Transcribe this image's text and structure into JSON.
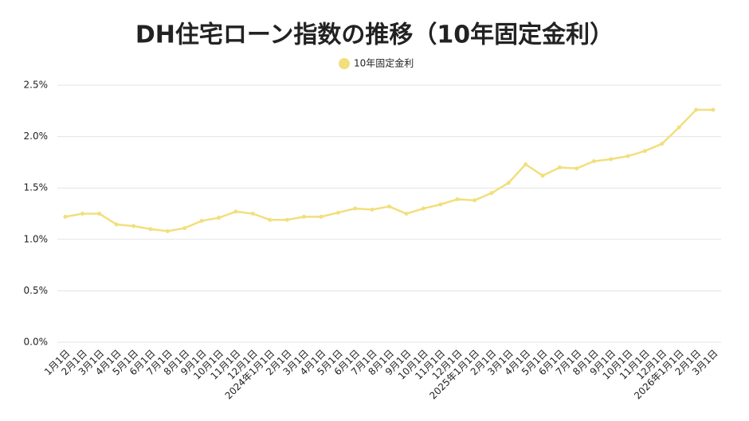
{
  "chart_data": {
    "type": "line",
    "title": "DH住宅ローン指数の推移（10年固定金利）",
    "categories": [
      "1月1日",
      "2月1日",
      "3月1日",
      "4月1日",
      "5月1日",
      "6月1日",
      "7月1日",
      "8月1日",
      "9月1日",
      "10月1日",
      "11月1日",
      "12月1日",
      "2024年1月1日",
      "2月1日",
      "3月1日",
      "4月1日",
      "5月1日",
      "6月1日",
      "7月1日",
      "8月1日",
      "9月1日",
      "10月1日",
      "11月1日",
      "12月1日",
      "2025年1月1日",
      "2月1日",
      "3月1日",
      "4月1日",
      "5月1日",
      "6月1日",
      "7月1日",
      "8月1日",
      "9月1日",
      "10月1日",
      "11月1日",
      "12月1日",
      "2026年1月1日",
      "2月1日",
      "3月1日"
    ],
    "series": [
      {
        "name": "10年固定金利",
        "color": "#f2df7c",
        "values": [
          1.22,
          1.25,
          1.25,
          1.145,
          1.13,
          1.1,
          1.08,
          1.11,
          1.18,
          1.21,
          1.27,
          1.25,
          1.19,
          1.19,
          1.22,
          1.22,
          1.26,
          1.3,
          1.29,
          1.32,
          1.25,
          1.3,
          1.34,
          1.39,
          1.38,
          1.45,
          1.55,
          1.73,
          1.62,
          1.7,
          1.69,
          1.76,
          1.78,
          1.81,
          1.86,
          1.93,
          2.09,
          2.26,
          2.26
        ]
      }
    ],
    "ylim": [
      0,
      2.5
    ],
    "yticks": [
      {
        "value": 0,
        "label": "0.0%"
      },
      {
        "value": 0.5,
        "label": "0.5%"
      },
      {
        "value": 1,
        "label": "1.0%"
      },
      {
        "value": 1.5,
        "label": "1.5%"
      },
      {
        "value": 2,
        "label": "2.0%"
      },
      {
        "value": 2.5,
        "label": "2.5%"
      }
    ],
    "grid": true,
    "legend": "top"
  }
}
